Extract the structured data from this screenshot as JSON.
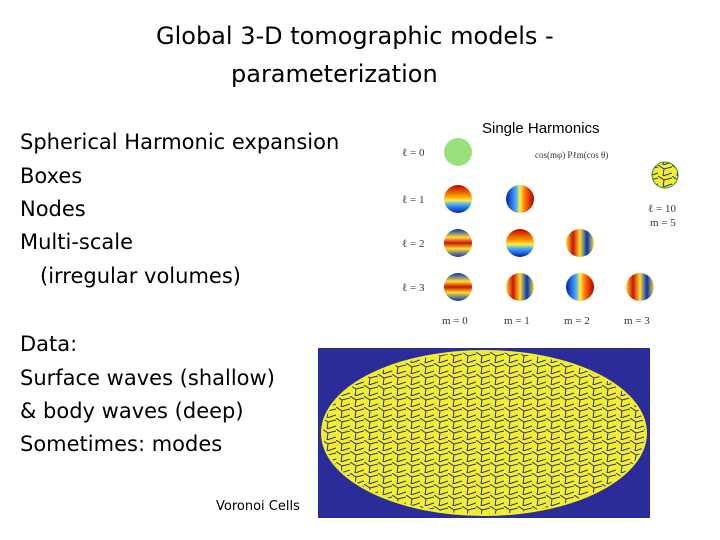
{
  "title": [
    "Global 3-D tomographic models  -",
    "parameterization"
  ],
  "parameterizations": [
    "Spherical Harmonic expansion",
    "Boxes",
    "Nodes",
    "Multi-scale",
    "(irregular volumes)"
  ],
  "data_notes": [
    "Data:",
    "Surface waves (shallow)",
    "& body waves (deep)",
    "Sometimes: modes"
  ],
  "harmonics_figure": {
    "title": "Single Harmonics",
    "formula": "cos(mφ)  Pℓm(cos θ)",
    "row_labels": [
      "ℓ = 0",
      "ℓ = 1",
      "ℓ = 2",
      "ℓ = 3"
    ],
    "column_labels": [
      "m = 0",
      "m = 1",
      "m = 2",
      "m = 3"
    ],
    "example_labels": [
      "ℓ = 10",
      "m = 5"
    ]
  },
  "map_caption": "Voronoi Cells"
}
